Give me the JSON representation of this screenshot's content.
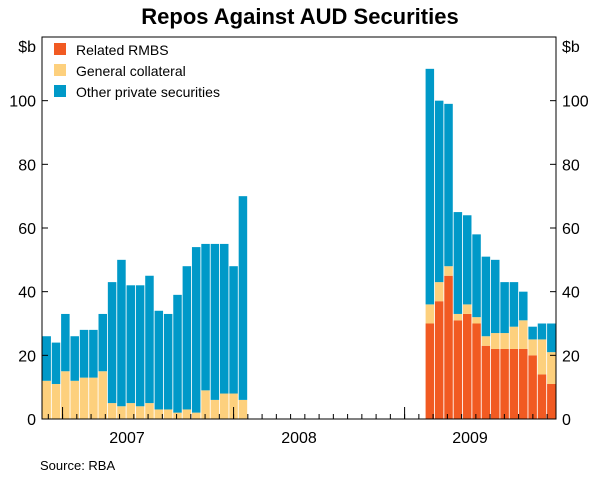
{
  "chart_data": {
    "type": "bar",
    "stacked": true,
    "title": "Repos Against AUD Securities",
    "units_left": "$b",
    "units_right": "$b",
    "ylim": [
      0,
      120
    ],
    "yticks": [
      0,
      20,
      40,
      60,
      80,
      100
    ],
    "year_labels": [
      "2007",
      "2008",
      "2009"
    ],
    "series": [
      {
        "name": "Related RMBS",
        "color": "#f15a22",
        "values": [
          0,
          0,
          0,
          0,
          0,
          0,
          0,
          0,
          0,
          0,
          0,
          0,
          0,
          0,
          0,
          0,
          0,
          0,
          0,
          0,
          0,
          0,
          0,
          0,
          0,
          0,
          0,
          0,
          0,
          0,
          0,
          0,
          0,
          0,
          0,
          0,
          0,
          0,
          0,
          0,
          0,
          30,
          37,
          45,
          31,
          33,
          30,
          23,
          22,
          22,
          22,
          22,
          20,
          14,
          11
        ]
      },
      {
        "name": "General collateral",
        "color": "#fdd07d",
        "values": [
          12,
          11,
          15,
          12,
          13,
          13,
          15,
          5,
          4,
          5,
          4,
          5,
          3,
          3,
          2,
          3,
          2,
          9,
          6,
          8,
          8,
          6,
          0,
          0,
          0,
          0,
          0,
          0,
          0,
          0,
          0,
          0,
          0,
          0,
          0,
          0,
          0,
          0,
          0,
          0,
          0,
          6,
          6,
          3,
          2,
          3,
          2,
          3,
          5,
          5,
          7,
          9,
          5,
          11,
          10
        ]
      },
      {
        "name": "Other private securities",
        "color": "#0099c8",
        "values": [
          14,
          13,
          18,
          14,
          15,
          15,
          18,
          38,
          46,
          37,
          38,
          40,
          31,
          30,
          37,
          45,
          52,
          46,
          49,
          47,
          40,
          64,
          0,
          0,
          0,
          0,
          0,
          0,
          0,
          0,
          0,
          0,
          0,
          0,
          0,
          0,
          0,
          0,
          0,
          0,
          0,
          74,
          57,
          51,
          32,
          28,
          26,
          25,
          23,
          16,
          14,
          9,
          4,
          5,
          9
        ]
      }
    ],
    "legend_position": "top-left",
    "source": "Source: RBA"
  }
}
